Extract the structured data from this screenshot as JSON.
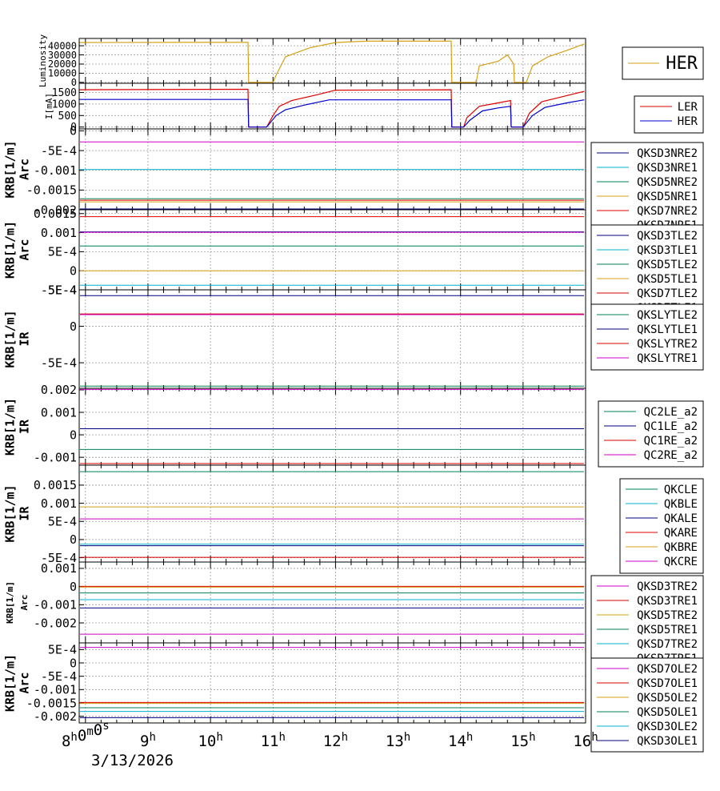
{
  "x_axis": {
    "date_label": "3/13/2026",
    "ticks": [
      {
        "hour": 8,
        "label": "8h0m0s"
      },
      {
        "hour": 9,
        "label": "9h"
      },
      {
        "hour": 10,
        "label": "10h"
      },
      {
        "hour": 11,
        "label": "11h"
      },
      {
        "hour": 12,
        "label": "12h"
      },
      {
        "hour": 13,
        "label": "13h"
      },
      {
        "hour": 14,
        "label": "14h"
      },
      {
        "hour": 15,
        "label": "15h"
      },
      {
        "hour": 16,
        "label": "16h"
      }
    ]
  },
  "colors": {
    "grid": "#9a9a9a",
    "axis": "#000000"
  },
  "chart_data": [
    {
      "type": "line",
      "ylabel": [
        "Luminosity"
      ],
      "ylim": [
        -1000,
        48000
      ],
      "yticks": [
        {
          "v": 0,
          "label": "0"
        },
        {
          "v": 10000,
          "label": "10000"
        },
        {
          "v": 20000,
          "label": "20000"
        },
        {
          "v": 30000,
          "label": "30000"
        },
        {
          "v": 40000,
          "label": "40000"
        }
      ],
      "legend": {
        "position": "right",
        "large": true
      },
      "series": [
        {
          "name": "HER",
          "color": "#d4a017",
          "points": [
            [
              7.9,
              43500
            ],
            [
              10.6,
              43800
            ],
            [
              10.61,
              0
            ],
            [
              11.0,
              0
            ],
            [
              11.05,
              8000
            ],
            [
              11.2,
              28000
            ],
            [
              11.6,
              38000
            ],
            [
              12.0,
              43500
            ],
            [
              12.5,
              45000
            ],
            [
              13.85,
              45000
            ],
            [
              13.86,
              0
            ],
            [
              14.25,
              0
            ],
            [
              14.3,
              18000
            ],
            [
              14.6,
              23000
            ],
            [
              14.75,
              30000
            ],
            [
              14.85,
              20000
            ],
            [
              14.86,
              0
            ],
            [
              15.05,
              0
            ],
            [
              15.15,
              18000
            ],
            [
              15.4,
              28000
            ],
            [
              15.7,
              35000
            ],
            [
              15.98,
              42000
            ]
          ]
        }
      ]
    },
    {
      "type": "line",
      "ylabel": [
        "I[mA]"
      ],
      "ylim": [
        -80,
        1900
      ],
      "yticks": [
        {
          "v": 0,
          "label": "0"
        },
        {
          "v": 500,
          "label": "500"
        },
        {
          "v": 1000,
          "label": "1000"
        },
        {
          "v": 1500,
          "label": "1500"
        }
      ],
      "legend": {
        "position": "right"
      },
      "series": [
        {
          "name": "LER",
          "color": "#dd0000",
          "points": [
            [
              7.9,
              1620
            ],
            [
              10.6,
              1640
            ],
            [
              10.61,
              0
            ],
            [
              10.9,
              0
            ],
            [
              11.0,
              500
            ],
            [
              11.1,
              900
            ],
            [
              11.3,
              1150
            ],
            [
              11.7,
              1400
            ],
            [
              12.0,
              1600
            ],
            [
              13.85,
              1620
            ],
            [
              13.86,
              0
            ],
            [
              14.05,
              0
            ],
            [
              14.1,
              400
            ],
            [
              14.3,
              900
            ],
            [
              14.6,
              1050
            ],
            [
              14.8,
              1150
            ],
            [
              14.81,
              0
            ],
            [
              15.0,
              0
            ],
            [
              15.1,
              600
            ],
            [
              15.3,
              1100
            ],
            [
              15.6,
              1300
            ],
            [
              15.98,
              1550
            ]
          ]
        },
        {
          "name": "HER",
          "color": "#0000cc",
          "points": [
            [
              7.9,
              1200
            ],
            [
              10.6,
              1200
            ],
            [
              10.61,
              0
            ],
            [
              10.9,
              0
            ],
            [
              11.05,
              500
            ],
            [
              11.2,
              750
            ],
            [
              11.5,
              950
            ],
            [
              11.9,
              1180
            ],
            [
              13.85,
              1180
            ],
            [
              13.86,
              0
            ],
            [
              14.05,
              0
            ],
            [
              14.15,
              300
            ],
            [
              14.35,
              700
            ],
            [
              14.6,
              830
            ],
            [
              14.8,
              900
            ],
            [
              14.81,
              0
            ],
            [
              15.0,
              0
            ],
            [
              15.15,
              500
            ],
            [
              15.35,
              850
            ],
            [
              15.7,
              1050
            ],
            [
              15.98,
              1180
            ]
          ]
        }
      ]
    },
    {
      "type": "line",
      "ylabel": [
        "KRB[1/m]",
        "Arc"
      ],
      "ylim": [
        -0.002,
        5e-05
      ],
      "yticks": [
        {
          "v": 0,
          "label": "0"
        },
        {
          "v": -0.0005,
          "label": "-5E-4"
        },
        {
          "v": -0.001,
          "label": "-0.001"
        },
        {
          "v": -0.0015,
          "label": "-0.0015"
        },
        {
          "v": -0.002,
          "label": "-0.002"
        }
      ],
      "legend": {
        "position": "right"
      },
      "series": [
        {
          "name": "QKSD3NRE2",
          "color": "#000080",
          "value": -0.00198
        },
        {
          "name": "QKSD3NRE1",
          "color": "#00b0d0",
          "value": -0.00098
        },
        {
          "name": "QKSD5NRE2",
          "color": "#008050",
          "value": -0.00172
        },
        {
          "name": "QKSD5NRE1",
          "color": "#d4a017",
          "value": -0.0018
        },
        {
          "name": "QKSD7NRE2",
          "color": "#dd0000",
          "value": -0.00176
        },
        {
          "name": "QKSD7NRE1",
          "color": "#cc00cc",
          "value": -0.00028
        }
      ]
    },
    {
      "type": "line",
      "ylabel": [
        "KRB[1/m]",
        "Arc"
      ],
      "ylim": [
        -0.0005,
        0.0016
      ],
      "yticks": [
        {
          "v": 0.0015,
          "label": "0.0015"
        },
        {
          "v": 0.001,
          "label": "0.001"
        },
        {
          "v": 0.0005,
          "label": "5E-4"
        },
        {
          "v": 0,
          "label": "0"
        },
        {
          "v": -0.0005,
          "label": "-5E-4"
        }
      ],
      "legend": {
        "position": "right"
      },
      "series": [
        {
          "name": "QKSD3TLE2",
          "color": "#000080",
          "value": 0.00102
        },
        {
          "name": "QKSD3TLE1",
          "color": "#00b0d0",
          "value": -0.00038
        },
        {
          "name": "QKSD5TLE2",
          "color": "#008050",
          "value": 0.00065
        },
        {
          "name": "QKSD5TLE1",
          "color": "#d4a017",
          "value": 0.0
        },
        {
          "name": "QKSD7TLE2",
          "color": "#dd0000",
          "value": 0.00142
        },
        {
          "name": "QKSD7TLE1",
          "color": "#cc00cc",
          "value": 0.00101
        }
      ]
    },
    {
      "type": "line",
      "ylabel": [
        "KRB[1/m]",
        "IR"
      ],
      "ylim": [
        -0.00085,
        0.0005
      ],
      "yticks": [
        {
          "v": 0.0005,
          "label": "5E-4"
        },
        {
          "v": 0,
          "label": "0"
        },
        {
          "v": -0.0005,
          "label": "-5E-4"
        }
      ],
      "legend": {
        "position": "right"
      },
      "series": [
        {
          "name": "QKSLYTLE2",
          "color": "#008050",
          "value": -0.00082
        },
        {
          "name": "QKSLYTLE1",
          "color": "#000080",
          "value": 0.00042
        },
        {
          "name": "QKSLYTRE2",
          "color": "#dd0000",
          "value": 0.00017
        },
        {
          "name": "QKSLYTRE1",
          "color": "#cc00cc",
          "value": 0.00016
        }
      ]
    },
    {
      "type": "line",
      "ylabel": [
        "KRB[1/m]",
        "IR"
      ],
      "ylim": [
        -0.00135,
        0.00207
      ],
      "yticks": [
        {
          "v": 0.002,
          "label": "0.002"
        },
        {
          "v": 0.001,
          "label": "0.001"
        },
        {
          "v": 0,
          "label": "0"
        },
        {
          "v": -0.001,
          "label": "-0.001"
        }
      ],
      "legend": {
        "position": "right"
      },
      "series": [
        {
          "name": "QC2LE_a2",
          "color": "#008050",
          "value": -0.00065
        },
        {
          "name": "QC1LE_a2",
          "color": "#000080",
          "value": 0.00027
        },
        {
          "name": "QC1RE_a2",
          "color": "#dd0000",
          "value": -0.00128
        },
        {
          "name": "QC2RE_a2",
          "color": "#cc00cc",
          "value": 0.00202
        }
      ]
    },
    {
      "type": "line",
      "ylabel": [
        "KRB[1/m]",
        "IR"
      ],
      "ylim": [
        -0.00062,
        0.00205
      ],
      "yticks": [
        {
          "v": 0.0015,
          "label": "0.0015"
        },
        {
          "v": 0.001,
          "label": "0.001"
        },
        {
          "v": 0.0005,
          "label": "5E-4"
        },
        {
          "v": 0,
          "label": "0"
        },
        {
          "v": -0.0005,
          "label": "-5E-4"
        }
      ],
      "legend": {
        "position": "right"
      },
      "series": [
        {
          "name": "QKCLE",
          "color": "#008050",
          "value": 0.00187
        },
        {
          "name": "QKBLE",
          "color": "#00b0d0",
          "value": -0.00013
        },
        {
          "name": "QKALE",
          "color": "#000080",
          "value": -0.00017
        },
        {
          "name": "QKARE",
          "color": "#dd0000",
          "value": -0.00049
        },
        {
          "name": "QKBRE",
          "color": "#d4a017",
          "value": 0.0009
        },
        {
          "name": "QKCRE",
          "color": "#cc00cc",
          "value": 0.00057
        }
      ]
    },
    {
      "type": "line",
      "ylabel": [
        "KRB[1/m]",
        "Arc"
      ],
      "ylim": [
        -0.0031,
        0.00135
      ],
      "yticks": [
        {
          "v": 0.001,
          "label": "0.001"
        },
        {
          "v": 0,
          "label": "0"
        },
        {
          "v": -0.001,
          "label": "-0.001"
        },
        {
          "v": -0.002,
          "label": "-0.002"
        }
      ],
      "legend": {
        "position": "right"
      },
      "series": [
        {
          "name": "QKSD3TRE2",
          "color": "#cc00cc",
          "value": -0.00262
        },
        {
          "name": "QKSD3TRE1",
          "color": "#dd0000",
          "value": 1e-05
        },
        {
          "name": "QKSD5TRE2",
          "color": "#d4a017",
          "value": -3e-05
        },
        {
          "name": "QKSD5TRE1",
          "color": "#008050",
          "value": -0.00035
        },
        {
          "name": "QKSD7TRE2",
          "color": "#00b0d0",
          "value": -0.00072
        },
        {
          "name": "QKSD7TRE1",
          "color": "#000080",
          "value": -0.00118
        }
      ]
    },
    {
      "type": "line",
      "ylabel": [
        "KRB[1/m]",
        "Arc"
      ],
      "ylim": [
        -0.00225,
        0.00075
      ],
      "yticks": [
        {
          "v": 0.0005,
          "label": "5E-4"
        },
        {
          "v": 0,
          "label": "0"
        },
        {
          "v": -0.0005,
          "label": "-5E-4"
        },
        {
          "v": -0.001,
          "label": "-0.001"
        },
        {
          "v": -0.0015,
          "label": "-0.0015"
        },
        {
          "v": -0.002,
          "label": "-0.002"
        }
      ],
      "legend": {
        "position": "right"
      },
      "series": [
        {
          "name": "QKSD7OLE2",
          "color": "#cc00cc",
          "value": 0.00058
        },
        {
          "name": "QKSD7OLE1",
          "color": "#dd0000",
          "value": -0.00148
        },
        {
          "name": "QKSD5OLE2",
          "color": "#d4a017",
          "value": -0.00152
        },
        {
          "name": "QKSD5OLE1",
          "color": "#008050",
          "value": -0.00168
        },
        {
          "name": "QKSD3OLE2",
          "color": "#00b0d0",
          "value": -0.00182
        },
        {
          "name": "QKSD3OLE1",
          "color": "#000080",
          "value": -0.00205
        }
      ]
    }
  ]
}
